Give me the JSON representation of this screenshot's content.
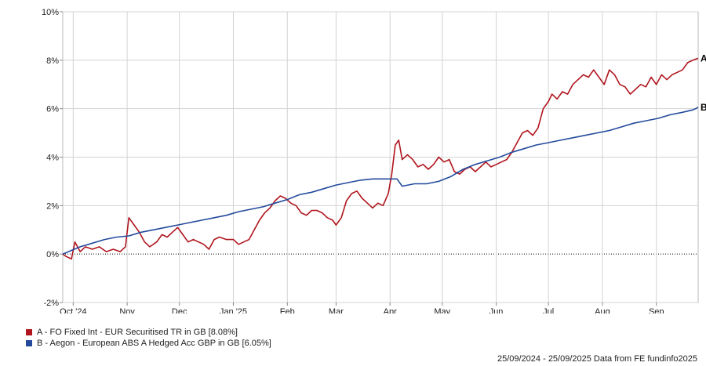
{
  "chart_data": {
    "type": "line",
    "ylim": [
      -2,
      10
    ],
    "yticks": [
      "-2%",
      "0%",
      "2%",
      "4%",
      "6%",
      "8%",
      "10%"
    ],
    "y_tick_values": [
      -2,
      0,
      2,
      4,
      6,
      8,
      10
    ],
    "x_range": [
      "2024-09-25",
      "2025-09-25"
    ],
    "xticks": [
      {
        "label": "Oct '24",
        "date": "2024-10-01"
      },
      {
        "label": "Nov",
        "date": "2024-11-01"
      },
      {
        "label": "Dec",
        "date": "2024-12-01"
      },
      {
        "label": "Jan '25",
        "date": "2025-01-01"
      },
      {
        "label": "Feb",
        "date": "2025-02-01"
      },
      {
        "label": "Mar",
        "date": "2025-03-01"
      },
      {
        "label": "Apr",
        "date": "2025-04-01"
      },
      {
        "label": "May",
        "date": "2025-05-01"
      },
      {
        "label": "Jun",
        "date": "2025-06-01"
      },
      {
        "label": "Jul",
        "date": "2025-07-01"
      },
      {
        "label": "Aug",
        "date": "2025-08-01"
      },
      {
        "label": "Sep",
        "date": "2025-09-01"
      }
    ],
    "grid": true,
    "zero_line": "dotted",
    "series": [
      {
        "name": "A - FO Fixed Int - EUR Securitised TR in GB [8.08%]",
        "end_label": "A",
        "color": "#b0151d",
        "points": [
          [
            "2024-09-25",
            0.0
          ],
          [
            "2024-09-27",
            -0.1
          ],
          [
            "2024-09-30",
            -0.2
          ],
          [
            "2024-10-02",
            0.5
          ],
          [
            "2024-10-05",
            0.1
          ],
          [
            "2024-10-08",
            0.3
          ],
          [
            "2024-10-12",
            0.2
          ],
          [
            "2024-10-16",
            0.3
          ],
          [
            "2024-10-20",
            0.1
          ],
          [
            "2024-10-24",
            0.2
          ],
          [
            "2024-10-28",
            0.1
          ],
          [
            "2024-10-31",
            0.3
          ],
          [
            "2024-11-02",
            1.5
          ],
          [
            "2024-11-05",
            1.2
          ],
          [
            "2024-11-08",
            0.9
          ],
          [
            "2024-11-11",
            0.5
          ],
          [
            "2024-11-14",
            0.3
          ],
          [
            "2024-11-18",
            0.5
          ],
          [
            "2024-11-21",
            0.8
          ],
          [
            "2024-11-24",
            0.7
          ],
          [
            "2024-11-27",
            0.9
          ],
          [
            "2024-11-30",
            1.1
          ],
          [
            "2024-12-03",
            0.8
          ],
          [
            "2024-12-06",
            0.5
          ],
          [
            "2024-12-09",
            0.6
          ],
          [
            "2024-12-12",
            0.5
          ],
          [
            "2024-12-15",
            0.4
          ],
          [
            "2024-12-18",
            0.2
          ],
          [
            "2024-12-21",
            0.6
          ],
          [
            "2024-12-24",
            0.7
          ],
          [
            "2024-12-28",
            0.6
          ],
          [
            "2025-01-01",
            0.6
          ],
          [
            "2025-01-04",
            0.4
          ],
          [
            "2025-01-07",
            0.5
          ],
          [
            "2025-01-10",
            0.6
          ],
          [
            "2025-01-13",
            1.0
          ],
          [
            "2025-01-16",
            1.4
          ],
          [
            "2025-01-19",
            1.7
          ],
          [
            "2025-01-22",
            1.9
          ],
          [
            "2025-01-25",
            2.2
          ],
          [
            "2025-01-28",
            2.4
          ],
          [
            "2025-01-31",
            2.3
          ],
          [
            "2025-02-03",
            2.1
          ],
          [
            "2025-02-06",
            2.0
          ],
          [
            "2025-02-09",
            1.7
          ],
          [
            "2025-02-12",
            1.6
          ],
          [
            "2025-02-15",
            1.8
          ],
          [
            "2025-02-18",
            1.8
          ],
          [
            "2025-02-21",
            1.7
          ],
          [
            "2025-02-24",
            1.5
          ],
          [
            "2025-02-27",
            1.4
          ],
          [
            "2025-03-01",
            1.2
          ],
          [
            "2025-03-04",
            1.5
          ],
          [
            "2025-03-07",
            2.2
          ],
          [
            "2025-03-10",
            2.5
          ],
          [
            "2025-03-13",
            2.6
          ],
          [
            "2025-03-16",
            2.3
          ],
          [
            "2025-03-19",
            2.1
          ],
          [
            "2025-03-22",
            1.9
          ],
          [
            "2025-03-25",
            2.1
          ],
          [
            "2025-03-28",
            2.0
          ],
          [
            "2025-03-31",
            2.5
          ],
          [
            "2025-04-02",
            3.3
          ],
          [
            "2025-04-04",
            4.5
          ],
          [
            "2025-04-06",
            4.7
          ],
          [
            "2025-04-08",
            3.9
          ],
          [
            "2025-04-11",
            4.1
          ],
          [
            "2025-04-14",
            3.9
          ],
          [
            "2025-04-17",
            3.6
          ],
          [
            "2025-04-20",
            3.7
          ],
          [
            "2025-04-23",
            3.5
          ],
          [
            "2025-04-26",
            3.7
          ],
          [
            "2025-04-29",
            4.0
          ],
          [
            "2025-05-02",
            3.8
          ],
          [
            "2025-05-05",
            3.9
          ],
          [
            "2025-05-08",
            3.4
          ],
          [
            "2025-05-11",
            3.3
          ],
          [
            "2025-05-14",
            3.5
          ],
          [
            "2025-05-17",
            3.6
          ],
          [
            "2025-05-20",
            3.4
          ],
          [
            "2025-05-23",
            3.6
          ],
          [
            "2025-05-26",
            3.8
          ],
          [
            "2025-05-29",
            3.6
          ],
          [
            "2025-06-01",
            3.7
          ],
          [
            "2025-06-04",
            3.8
          ],
          [
            "2025-06-07",
            3.9
          ],
          [
            "2025-06-10",
            4.2
          ],
          [
            "2025-06-13",
            4.6
          ],
          [
            "2025-06-16",
            5.0
          ],
          [
            "2025-06-19",
            5.1
          ],
          [
            "2025-06-22",
            4.9
          ],
          [
            "2025-06-25",
            5.2
          ],
          [
            "2025-06-28",
            6.0
          ],
          [
            "2025-07-01",
            6.3
          ],
          [
            "2025-07-03",
            6.6
          ],
          [
            "2025-07-06",
            6.4
          ],
          [
            "2025-07-09",
            6.7
          ],
          [
            "2025-07-12",
            6.6
          ],
          [
            "2025-07-15",
            7.0
          ],
          [
            "2025-07-18",
            7.2
          ],
          [
            "2025-07-21",
            7.4
          ],
          [
            "2025-07-24",
            7.3
          ],
          [
            "2025-07-27",
            7.6
          ],
          [
            "2025-07-30",
            7.3
          ],
          [
            "2025-08-02",
            7.0
          ],
          [
            "2025-08-05",
            7.6
          ],
          [
            "2025-08-08",
            7.4
          ],
          [
            "2025-08-11",
            7.0
          ],
          [
            "2025-08-14",
            6.9
          ],
          [
            "2025-08-17",
            6.6
          ],
          [
            "2025-08-20",
            6.8
          ],
          [
            "2025-08-23",
            7.0
          ],
          [
            "2025-08-26",
            6.9
          ],
          [
            "2025-08-29",
            7.3
          ],
          [
            "2025-09-01",
            7.0
          ],
          [
            "2025-09-04",
            7.4
          ],
          [
            "2025-09-07",
            7.2
          ],
          [
            "2025-09-10",
            7.4
          ],
          [
            "2025-09-13",
            7.5
          ],
          [
            "2025-09-16",
            7.6
          ],
          [
            "2025-09-19",
            7.9
          ],
          [
            "2025-09-22",
            8.0
          ],
          [
            "2025-09-25",
            8.08
          ]
        ]
      },
      {
        "name": "B - Aegon - European ABS A Hedged Acc GBP in GB [6.05%]",
        "end_label": "B",
        "color": "#234a9c",
        "points": [
          [
            "2024-09-25",
            0.0
          ],
          [
            "2024-09-30",
            0.15
          ],
          [
            "2024-10-05",
            0.3
          ],
          [
            "2024-10-12",
            0.45
          ],
          [
            "2024-10-19",
            0.6
          ],
          [
            "2024-10-26",
            0.7
          ],
          [
            "2024-11-02",
            0.75
          ],
          [
            "2024-11-09",
            0.9
          ],
          [
            "2024-11-16",
            1.0
          ],
          [
            "2024-11-23",
            1.1
          ],
          [
            "2024-11-30",
            1.2
          ],
          [
            "2024-12-07",
            1.3
          ],
          [
            "2024-12-14",
            1.4
          ],
          [
            "2024-12-21",
            1.5
          ],
          [
            "2024-12-28",
            1.6
          ],
          [
            "2025-01-04",
            1.75
          ],
          [
            "2025-01-11",
            1.85
          ],
          [
            "2025-01-18",
            1.95
          ],
          [
            "2025-01-25",
            2.1
          ],
          [
            "2025-02-01",
            2.25
          ],
          [
            "2025-02-08",
            2.45
          ],
          [
            "2025-02-15",
            2.55
          ],
          [
            "2025-02-22",
            2.7
          ],
          [
            "2025-03-01",
            2.85
          ],
          [
            "2025-03-08",
            2.95
          ],
          [
            "2025-03-15",
            3.05
          ],
          [
            "2025-03-22",
            3.1
          ],
          [
            "2025-03-29",
            3.1
          ],
          [
            "2025-04-05",
            3.1
          ],
          [
            "2025-04-08",
            2.8
          ],
          [
            "2025-04-15",
            2.9
          ],
          [
            "2025-04-22",
            2.9
          ],
          [
            "2025-04-29",
            3.0
          ],
          [
            "2025-05-06",
            3.2
          ],
          [
            "2025-05-13",
            3.5
          ],
          [
            "2025-05-20",
            3.7
          ],
          [
            "2025-05-27",
            3.85
          ],
          [
            "2025-06-03",
            4.0
          ],
          [
            "2025-06-10",
            4.2
          ],
          [
            "2025-06-17",
            4.35
          ],
          [
            "2025-06-24",
            4.5
          ],
          [
            "2025-07-01",
            4.6
          ],
          [
            "2025-07-08",
            4.7
          ],
          [
            "2025-07-15",
            4.8
          ],
          [
            "2025-07-22",
            4.9
          ],
          [
            "2025-07-29",
            5.0
          ],
          [
            "2025-08-05",
            5.1
          ],
          [
            "2025-08-12",
            5.25
          ],
          [
            "2025-08-19",
            5.4
          ],
          [
            "2025-08-26",
            5.5
          ],
          [
            "2025-09-02",
            5.6
          ],
          [
            "2025-09-09",
            5.75
          ],
          [
            "2025-09-16",
            5.85
          ],
          [
            "2025-09-22",
            5.95
          ],
          [
            "2025-09-25",
            6.05
          ]
        ]
      }
    ]
  },
  "legend": {
    "items": [
      {
        "label": "A - FO Fixed Int - EUR Securitised TR in GB [8.08%]",
        "color": "#b0151d"
      },
      {
        "label": "B - Aegon - European ABS A Hedged Acc GBP in GB [6.05%]",
        "color": "#234a9c"
      }
    ]
  },
  "footer": "25/09/2024 - 25/09/2025 Data from FE fundinfo2025"
}
